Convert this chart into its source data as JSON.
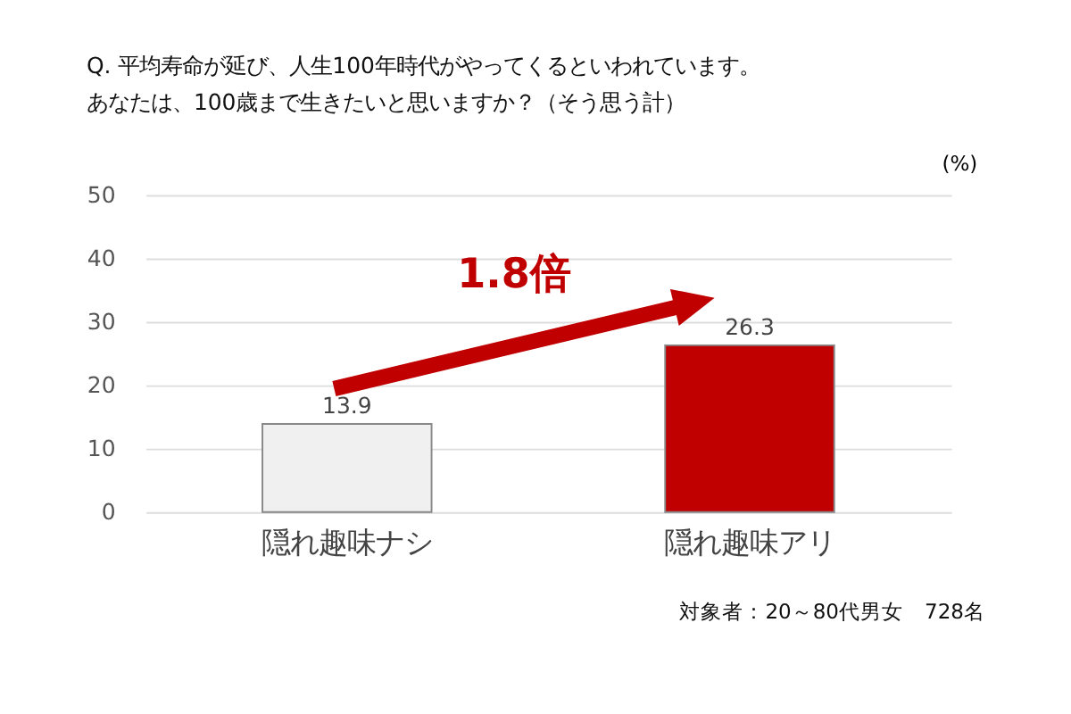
{
  "chart_data": {
    "type": "bar",
    "title": "Q. 平均寿命が延び、人生100年時代がやってくるといわれています。",
    "subtitle": "あなたは、100歳まで生きたいと思いますか？（そう思う計）",
    "ylabel": "(%)",
    "categories": [
      "隠れ趣味ナシ",
      "隠れ趣味アリ"
    ],
    "values": [
      13.9,
      26.3
    ],
    "colors": [
      "#f0f0f0",
      "#c00000"
    ],
    "ylim": [
      0,
      50
    ],
    "yticks": [
      0,
      10,
      20,
      30,
      40,
      50
    ],
    "grid": "y",
    "legend": false,
    "data_labels": true,
    "annotations": [
      "1.8倍",
      "対象者：20～80代男女　728名"
    ]
  }
}
